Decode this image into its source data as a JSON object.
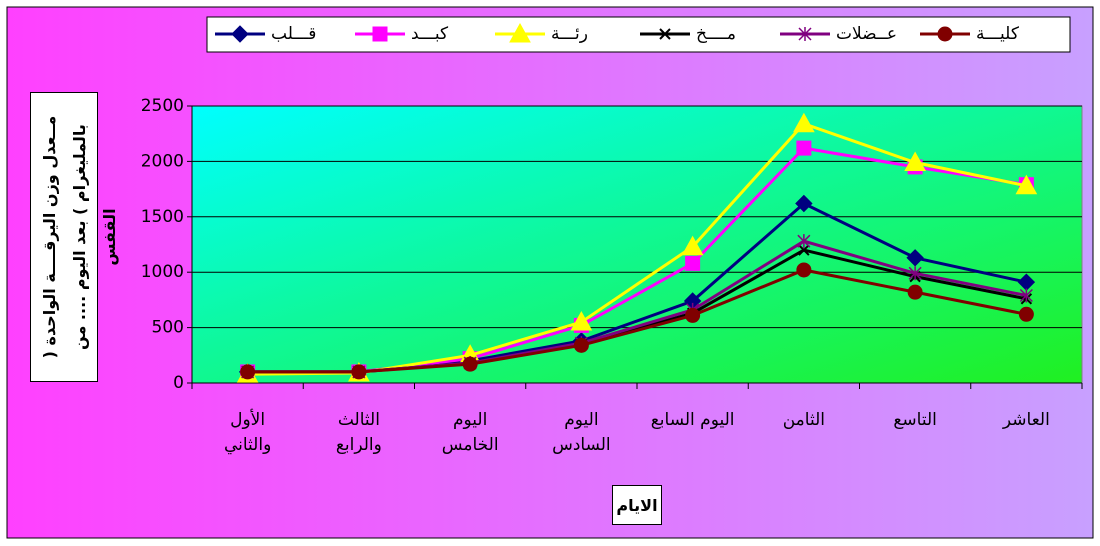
{
  "chart_data": {
    "type": "line",
    "categories": [
      "الأول\nوالثاني",
      "الثالث\nوالرابع",
      "اليوم\nالخامس",
      "اليوم\nالسادس",
      "اليوم السابع",
      "الثامن",
      "التاسع",
      "العاشر"
    ],
    "series": [
      {
        "name": "قـــلب",
        "color": "#000080",
        "marker": "diamond",
        "values": [
          100,
          100,
          200,
          380,
          740,
          1620,
          1130,
          910
        ]
      },
      {
        "name": "كبـــد",
        "color": "#ff00ff",
        "marker": "square",
        "values": [
          100,
          100,
          220,
          520,
          1080,
          2120,
          1950,
          1790
        ]
      },
      {
        "name": "رئـــة",
        "color": "#ffff00",
        "marker": "triangle",
        "values": [
          80,
          90,
          250,
          550,
          1230,
          2340,
          1990,
          1780
        ]
      },
      {
        "name": "مــــخ",
        "color": "#000000",
        "marker": "x",
        "values": [
          100,
          100,
          180,
          350,
          630,
          1200,
          960,
          760
        ]
      },
      {
        "name": "عــضلات",
        "color": "#800080",
        "marker": "star",
        "values": [
          100,
          100,
          180,
          360,
          660,
          1280,
          990,
          790
        ]
      },
      {
        "name": "كليـــة",
        "color": "#800000",
        "marker": "circle",
        "values": [
          100,
          100,
          170,
          340,
          610,
          1020,
          820,
          620
        ]
      }
    ],
    "ylim": [
      0,
      2500
    ],
    "yticks": [
      0,
      500,
      1000,
      1500,
      2000,
      2500
    ],
    "grid": true,
    "y_label": "مــعدل وزن اليرقــــة الواحدة (\nبالمليغرام ) بعد اليوم .... من القفس",
    "x_label": "الايام"
  }
}
